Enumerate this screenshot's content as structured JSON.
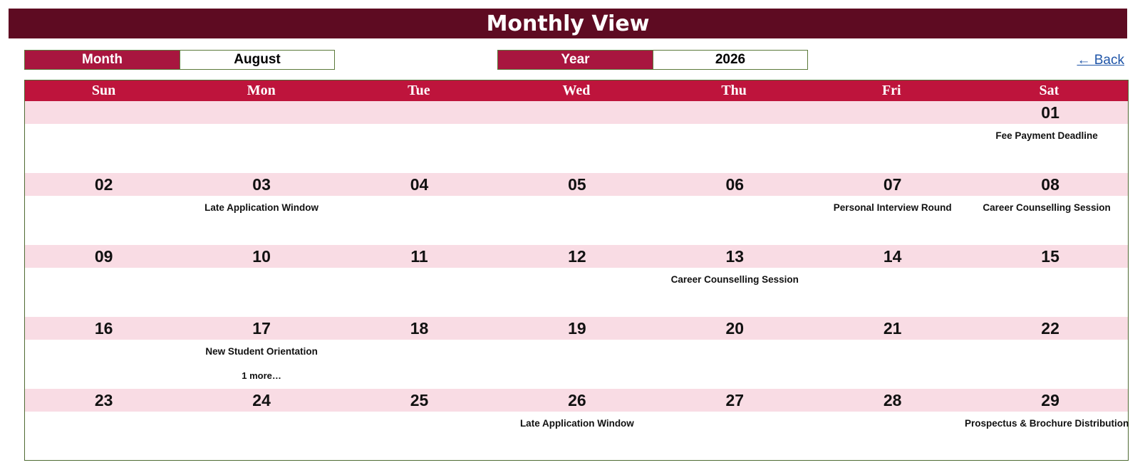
{
  "title": "Monthly View",
  "month_selector": {
    "label": "Month",
    "value": "August"
  },
  "year_selector": {
    "label": "Year",
    "value": "2026"
  },
  "back_link": "← Back",
  "day_headers": [
    "Sun",
    "Mon",
    "Tue",
    "Wed",
    "Thu",
    "Fri",
    "Sat"
  ],
  "colors": {
    "title_bar": "#5e0b22",
    "selector_label": "#a8163f",
    "day_header": "#be143c",
    "date_band": "#f9dce4",
    "border": "#4f6b33",
    "link": "#1f55a8"
  },
  "weeks": [
    [
      {
        "date": "",
        "event": "",
        "more": ""
      },
      {
        "date": "",
        "event": "",
        "more": ""
      },
      {
        "date": "",
        "event": "",
        "more": ""
      },
      {
        "date": "",
        "event": "",
        "more": ""
      },
      {
        "date": "",
        "event": "",
        "more": ""
      },
      {
        "date": "",
        "event": "",
        "more": ""
      },
      {
        "date": "01",
        "event": "Fee Payment Deadline",
        "more": ""
      }
    ],
    [
      {
        "date": "02",
        "event": "",
        "more": ""
      },
      {
        "date": "03",
        "event": "Late Application Window",
        "more": ""
      },
      {
        "date": "04",
        "event": "",
        "more": ""
      },
      {
        "date": "05",
        "event": "",
        "more": ""
      },
      {
        "date": "06",
        "event": "",
        "more": ""
      },
      {
        "date": "07",
        "event": "Personal Interview Round",
        "more": ""
      },
      {
        "date": "08",
        "event": "Career Counselling Session",
        "more": ""
      }
    ],
    [
      {
        "date": "09",
        "event": "",
        "more": ""
      },
      {
        "date": "10",
        "event": "",
        "more": ""
      },
      {
        "date": "11",
        "event": "",
        "more": ""
      },
      {
        "date": "12",
        "event": "",
        "more": ""
      },
      {
        "date": "13",
        "event": "Career Counselling Session",
        "more": ""
      },
      {
        "date": "14",
        "event": "",
        "more": ""
      },
      {
        "date": "15",
        "event": "",
        "more": ""
      }
    ],
    [
      {
        "date": "16",
        "event": "",
        "more": ""
      },
      {
        "date": "17",
        "event": "New Student Orientation",
        "more": "1 more…"
      },
      {
        "date": "18",
        "event": "",
        "more": ""
      },
      {
        "date": "19",
        "event": "",
        "more": ""
      },
      {
        "date": "20",
        "event": "",
        "more": ""
      },
      {
        "date": "21",
        "event": "",
        "more": ""
      },
      {
        "date": "22",
        "event": "",
        "more": ""
      }
    ],
    [
      {
        "date": "23",
        "event": "",
        "more": ""
      },
      {
        "date": "24",
        "event": "",
        "more": ""
      },
      {
        "date": "25",
        "event": "",
        "more": ""
      },
      {
        "date": "26",
        "event": "Late Application Window",
        "more": ""
      },
      {
        "date": "27",
        "event": "",
        "more": ""
      },
      {
        "date": "28",
        "event": "",
        "more": ""
      },
      {
        "date": "29",
        "event": "Prospectus & Brochure Distribution",
        "more": ""
      }
    ]
  ]
}
